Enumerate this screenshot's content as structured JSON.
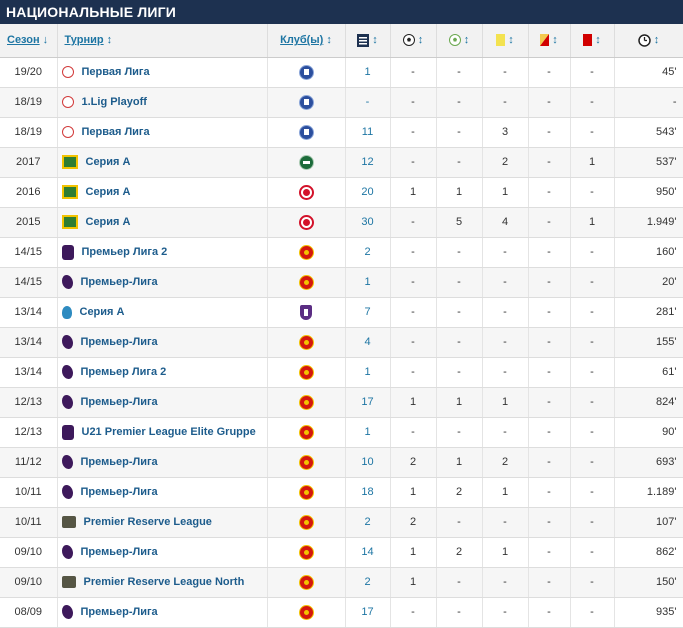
{
  "header": {
    "title": "НАЦИОНАЛЬНЫЕ ЛИГИ"
  },
  "columns": {
    "season": "Сезон",
    "season_sort": "↓",
    "competition": "Турнир",
    "competition_sort": "↕",
    "club": "Клуб(ы)",
    "club_sort": "↕",
    "sort": "↕"
  },
  "icons": {
    "appearances": "appearances-icon",
    "goals": "goals-icon",
    "assists": "assists-icon",
    "yellow": "yellow-card-icon",
    "second_yellow": "second-yellow-card-icon",
    "red": "red-card-icon",
    "minutes": "clock-icon"
  },
  "colors": {
    "header_bg": "#1d3150",
    "link": "#1d75a3",
    "yellow": "#f3e24f",
    "red": "#d10000"
  },
  "rows": [
    {
      "season": "19/20",
      "comp": "Первая Лига",
      "comp_logo": "rus",
      "club": "dinamo",
      "apps": "1",
      "goals": "-",
      "assists": "-",
      "yellow": "-",
      "second": "-",
      "red": "-",
      "minutes": "45'"
    },
    {
      "season": "18/19",
      "comp": "1.Lig Playoff",
      "comp_logo": "rus",
      "club": "dinamo",
      "apps": "-",
      "goals": "-",
      "assists": "-",
      "yellow": "-",
      "second": "-",
      "red": "-",
      "minutes": "-"
    },
    {
      "season": "18/19",
      "comp": "Первая Лига",
      "comp_logo": "rus",
      "club": "dinamo",
      "apps": "11",
      "goals": "-",
      "assists": "-",
      "yellow": "3",
      "second": "-",
      "red": "-",
      "minutes": "543'"
    },
    {
      "season": "2017",
      "comp": "Серия А",
      "comp_logo": "bra",
      "club": "chape",
      "apps": "12",
      "goals": "-",
      "assists": "-",
      "yellow": "2",
      "second": "-",
      "red": "1",
      "minutes": "537'"
    },
    {
      "season": "2016",
      "comp": "Серия А",
      "comp_logo": "bra",
      "club": "inter",
      "apps": "20",
      "goals": "1",
      "assists": "1",
      "yellow": "1",
      "second": "-",
      "red": "-",
      "minutes": "950'"
    },
    {
      "season": "2015",
      "comp": "Серия А",
      "comp_logo": "bra",
      "club": "inter",
      "apps": "30",
      "goals": "-",
      "assists": "5",
      "yellow": "4",
      "second": "-",
      "red": "1",
      "minutes": "1.949'"
    },
    {
      "season": "14/15",
      "comp": "Премьер Лига 2",
      "comp_logo": "u21",
      "club": "mu",
      "apps": "2",
      "goals": "-",
      "assists": "-",
      "yellow": "-",
      "second": "-",
      "red": "-",
      "minutes": "160'"
    },
    {
      "season": "14/15",
      "comp": "Премьер-Лига",
      "comp_logo": "pl",
      "club": "mu",
      "apps": "1",
      "goals": "-",
      "assists": "-",
      "yellow": "-",
      "second": "-",
      "red": "-",
      "minutes": "20'"
    },
    {
      "season": "13/14",
      "comp": "Серия А",
      "comp_logo": "ita",
      "club": "fio",
      "apps": "7",
      "goals": "-",
      "assists": "-",
      "yellow": "-",
      "second": "-",
      "red": "-",
      "minutes": "281'"
    },
    {
      "season": "13/14",
      "comp": "Премьер-Лига",
      "comp_logo": "pl",
      "club": "mu",
      "apps": "4",
      "goals": "-",
      "assists": "-",
      "yellow": "-",
      "second": "-",
      "red": "-",
      "minutes": "155'"
    },
    {
      "season": "13/14",
      "comp": "Премьер Лига 2",
      "comp_logo": "pl",
      "club": "mu",
      "apps": "1",
      "goals": "-",
      "assists": "-",
      "yellow": "-",
      "second": "-",
      "red": "-",
      "minutes": "61'"
    },
    {
      "season": "12/13",
      "comp": "Премьер-Лига",
      "comp_logo": "pl",
      "club": "mu",
      "apps": "17",
      "goals": "1",
      "assists": "1",
      "yellow": "1",
      "second": "-",
      "red": "-",
      "minutes": "824'"
    },
    {
      "season": "12/13",
      "comp": "U21 Premier League Elite Gruppe",
      "comp_logo": "u21",
      "club": "mu",
      "apps": "1",
      "goals": "-",
      "assists": "-",
      "yellow": "-",
      "second": "-",
      "red": "-",
      "minutes": "90'"
    },
    {
      "season": "11/12",
      "comp": "Премьер-Лига",
      "comp_logo": "pl",
      "club": "mu",
      "apps": "10",
      "goals": "2",
      "assists": "1",
      "yellow": "2",
      "second": "-",
      "red": "-",
      "minutes": "693'"
    },
    {
      "season": "10/11",
      "comp": "Премьер-Лига",
      "comp_logo": "pl",
      "club": "mu",
      "apps": "18",
      "goals": "1",
      "assists": "2",
      "yellow": "1",
      "second": "-",
      "red": "-",
      "minutes": "1.189'"
    },
    {
      "season": "10/11",
      "comp": "Premier Reserve League",
      "comp_logo": "res",
      "club": "mu",
      "apps": "2",
      "goals": "2",
      "assists": "-",
      "yellow": "-",
      "second": "-",
      "red": "-",
      "minutes": "107'"
    },
    {
      "season": "09/10",
      "comp": "Премьер-Лига",
      "comp_logo": "pl",
      "club": "mu",
      "apps": "14",
      "goals": "1",
      "assists": "2",
      "yellow": "1",
      "second": "-",
      "red": "-",
      "minutes": "862'"
    },
    {
      "season": "09/10",
      "comp": "Premier Reserve League North",
      "comp_logo": "res",
      "club": "mu",
      "apps": "2",
      "goals": "1",
      "assists": "-",
      "yellow": "-",
      "second": "-",
      "red": "-",
      "minutes": "150'"
    },
    {
      "season": "08/09",
      "comp": "Премьер-Лига",
      "comp_logo": "pl",
      "club": "mu",
      "apps": "17",
      "goals": "-",
      "assists": "-",
      "yellow": "-",
      "second": "-",
      "red": "-",
      "minutes": "935'"
    }
  ]
}
